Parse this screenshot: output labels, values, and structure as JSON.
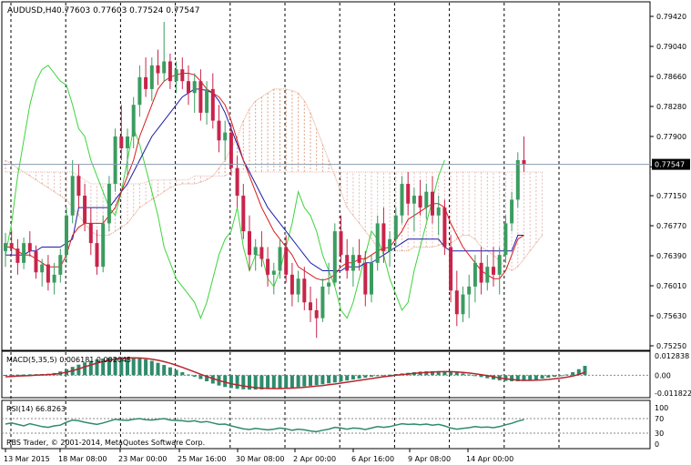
{
  "chart_data": {
    "type": "candlestick",
    "symbol_label": "AUDUSD,H4",
    "ohlc_label": "0.77603 0.77603 0.77524 0.77547",
    "current_price_label": "0.77547",
    "price_ticks": [
      "0.79420",
      "0.79040",
      "0.78660",
      "0.78280",
      "0.77900",
      "0.77515",
      "0.77150",
      "0.76770",
      "0.76390",
      "0.76010",
      "0.75630",
      "0.75250"
    ],
    "ylim": [
      0.7525,
      0.7942
    ],
    "current_price": 0.77547,
    "x_labels": [
      "13 Mar 2015",
      "18 Mar 08:00",
      "23 Mar 00:00",
      "25 Mar 16:00",
      "30 Mar 08:00",
      "2 Apr 00:00",
      "6 Apr 16:00",
      "9 Apr 08:00",
      "14 Apr 00:00"
    ],
    "session_separators": 11,
    "candles": [
      [
        0.7645,
        0.7668,
        0.7625,
        0.7655
      ],
      [
        0.7655,
        0.7672,
        0.764,
        0.7648
      ],
      [
        0.7648,
        0.766,
        0.7615,
        0.763
      ],
      [
        0.763,
        0.7662,
        0.7622,
        0.7655
      ],
      [
        0.7655,
        0.767,
        0.7638,
        0.7645
      ],
      [
        0.7645,
        0.7652,
        0.761,
        0.7618
      ],
      [
        0.7618,
        0.7635,
        0.76,
        0.7628
      ],
      [
        0.7628,
        0.764,
        0.7595,
        0.7605
      ],
      [
        0.7605,
        0.763,
        0.759,
        0.7615
      ],
      [
        0.7615,
        0.7648,
        0.7605,
        0.764
      ],
      [
        0.764,
        0.77,
        0.763,
        0.769
      ],
      [
        0.769,
        0.776,
        0.768,
        0.774
      ],
      [
        0.774,
        0.7755,
        0.77,
        0.7715
      ],
      [
        0.7715,
        0.773,
        0.767,
        0.768
      ],
      [
        0.768,
        0.77,
        0.764,
        0.7655
      ],
      [
        0.7655,
        0.7672,
        0.7615,
        0.7625
      ],
      [
        0.7625,
        0.769,
        0.7618,
        0.768
      ],
      [
        0.768,
        0.774,
        0.767,
        0.773
      ],
      [
        0.773,
        0.78,
        0.772,
        0.779
      ],
      [
        0.779,
        0.783,
        0.776,
        0.7775
      ],
      [
        0.7775,
        0.78,
        0.774,
        0.779
      ],
      [
        0.779,
        0.784,
        0.7775,
        0.783
      ],
      [
        0.783,
        0.788,
        0.7815,
        0.7865
      ],
      [
        0.7865,
        0.789,
        0.784,
        0.785
      ],
      [
        0.785,
        0.789,
        0.7835,
        0.788
      ],
      [
        0.788,
        0.79,
        0.7855,
        0.787
      ],
      [
        0.787,
        0.7935,
        0.786,
        0.7885
      ],
      [
        0.7885,
        0.7895,
        0.785,
        0.786
      ],
      [
        0.786,
        0.7885,
        0.7845,
        0.7875
      ],
      [
        0.7875,
        0.789,
        0.785,
        0.786
      ],
      [
        0.786,
        0.788,
        0.783,
        0.7845
      ],
      [
        0.7845,
        0.787,
        0.782,
        0.786
      ],
      [
        0.786,
        0.7875,
        0.781,
        0.782
      ],
      [
        0.782,
        0.786,
        0.7805,
        0.785
      ],
      [
        0.785,
        0.787,
        0.78,
        0.781
      ],
      [
        0.781,
        0.783,
        0.777,
        0.7785
      ],
      [
        0.7785,
        0.781,
        0.776,
        0.7795
      ],
      [
        0.7795,
        0.7805,
        0.774,
        0.775
      ],
      [
        0.775,
        0.7765,
        0.77,
        0.7715
      ],
      [
        0.7715,
        0.773,
        0.766,
        0.767
      ],
      [
        0.767,
        0.769,
        0.762,
        0.764
      ],
      [
        0.764,
        0.766,
        0.762,
        0.765
      ],
      [
        0.765,
        0.767,
        0.7625,
        0.7635
      ],
      [
        0.7635,
        0.765,
        0.76,
        0.7615
      ],
      [
        0.7615,
        0.763,
        0.759,
        0.762
      ],
      [
        0.762,
        0.766,
        0.761,
        0.765
      ],
      [
        0.765,
        0.7665,
        0.7605,
        0.7615
      ],
      [
        0.7615,
        0.763,
        0.7575,
        0.759
      ],
      [
        0.759,
        0.762,
        0.758,
        0.761
      ],
      [
        0.761,
        0.7625,
        0.757,
        0.758
      ],
      [
        0.758,
        0.76,
        0.7555,
        0.757
      ],
      [
        0.757,
        0.7585,
        0.7535,
        0.756
      ],
      [
        0.756,
        0.761,
        0.7555,
        0.76
      ],
      [
        0.76,
        0.763,
        0.759,
        0.7605
      ],
      [
        0.7605,
        0.768,
        0.76,
        0.767
      ],
      [
        0.767,
        0.769,
        0.763,
        0.764
      ],
      [
        0.764,
        0.766,
        0.761,
        0.762
      ],
      [
        0.762,
        0.765,
        0.76,
        0.764
      ],
      [
        0.764,
        0.766,
        0.762,
        0.763
      ],
      [
        0.763,
        0.7645,
        0.7575,
        0.759
      ],
      [
        0.759,
        0.764,
        0.758,
        0.763
      ],
      [
        0.763,
        0.769,
        0.762,
        0.768
      ],
      [
        0.768,
        0.77,
        0.763,
        0.7645
      ],
      [
        0.7645,
        0.767,
        0.7625,
        0.766
      ],
      [
        0.766,
        0.77,
        0.765,
        0.769
      ],
      [
        0.769,
        0.774,
        0.768,
        0.773
      ],
      [
        0.773,
        0.7745,
        0.769,
        0.7705
      ],
      [
        0.7705,
        0.7725,
        0.767,
        0.7715
      ],
      [
        0.7715,
        0.7735,
        0.769,
        0.77
      ],
      [
        0.77,
        0.773,
        0.7685,
        0.772
      ],
      [
        0.772,
        0.774,
        0.768,
        0.769
      ],
      [
        0.769,
        0.7715,
        0.7665,
        0.77
      ],
      [
        0.77,
        0.771,
        0.764,
        0.765
      ],
      [
        0.765,
        0.7665,
        0.758,
        0.7595
      ],
      [
        0.7595,
        0.762,
        0.755,
        0.7565
      ],
      [
        0.7565,
        0.76,
        0.7555,
        0.759
      ],
      [
        0.759,
        0.7615,
        0.756,
        0.76
      ],
      [
        0.76,
        0.764,
        0.758,
        0.763
      ],
      [
        0.763,
        0.765,
        0.759,
        0.7605
      ],
      [
        0.7605,
        0.764,
        0.7595,
        0.7625
      ],
      [
        0.7625,
        0.765,
        0.76,
        0.7615
      ],
      [
        0.7615,
        0.765,
        0.759,
        0.764
      ],
      [
        0.764,
        0.769,
        0.763,
        0.768
      ],
      [
        0.768,
        0.772,
        0.767,
        0.771
      ],
      [
        0.771,
        0.777,
        0.77,
        0.776
      ],
      [
        0.776,
        0.779,
        0.7745,
        0.7755
      ]
    ],
    "ichimoku": {
      "tenkan": [
        0.765,
        0.765,
        0.7645,
        0.764,
        0.764,
        0.7635,
        0.763,
        0.7625,
        0.7625,
        0.7625,
        0.764,
        0.7665,
        0.7675,
        0.768,
        0.768,
        0.768,
        0.768,
        0.769,
        0.77,
        0.772,
        0.774,
        0.776,
        0.779,
        0.781,
        0.783,
        0.785,
        0.786,
        0.7865,
        0.7868,
        0.787,
        0.787,
        0.7868,
        0.786,
        0.785,
        0.7845,
        0.784,
        0.783,
        0.781,
        0.7785,
        0.776,
        0.774,
        0.772,
        0.77,
        0.7685,
        0.767,
        0.766,
        0.765,
        0.764,
        0.7625,
        0.762,
        0.7615,
        0.761,
        0.7608,
        0.761,
        0.7615,
        0.7625,
        0.763,
        0.763,
        0.7635,
        0.7635,
        0.764,
        0.7645,
        0.7648,
        0.765,
        0.766,
        0.767,
        0.7685,
        0.769,
        0.7695,
        0.77,
        0.7705,
        0.7705,
        0.77,
        0.768,
        0.7665,
        0.765,
        0.764,
        0.763,
        0.762,
        0.7615,
        0.761,
        0.761,
        0.762,
        0.764,
        0.766,
        0.7665
      ],
      "kijun": [
        0.764,
        0.764,
        0.764,
        0.764,
        0.7645,
        0.7645,
        0.765,
        0.765,
        0.765,
        0.765,
        0.7655,
        0.766,
        0.77,
        0.77,
        0.77,
        0.77,
        0.77,
        0.77,
        0.771,
        0.772,
        0.773,
        0.7745,
        0.776,
        0.7775,
        0.779,
        0.78,
        0.781,
        0.782,
        0.783,
        0.784,
        0.7845,
        0.785,
        0.785,
        0.7848,
        0.7845,
        0.7835,
        0.782,
        0.78,
        0.778,
        0.776,
        0.7745,
        0.773,
        0.7715,
        0.77,
        0.769,
        0.768,
        0.767,
        0.766,
        0.765,
        0.764,
        0.763,
        0.7625,
        0.762,
        0.762,
        0.762,
        0.762,
        0.7625,
        0.7625,
        0.7625,
        0.763,
        0.763,
        0.7635,
        0.764,
        0.7645,
        0.765,
        0.7655,
        0.766,
        0.766,
        0.766,
        0.766,
        0.766,
        0.766,
        0.765,
        0.7645,
        0.7645,
        0.7645,
        0.7645,
        0.7645,
        0.7645,
        0.7645,
        0.7645,
        0.7645,
        0.7645,
        0.7645,
        0.7665,
        0.7665
      ],
      "chikou": [
        0.764,
        0.768,
        0.774,
        0.7785,
        0.783,
        0.786,
        0.7875,
        0.788,
        0.787,
        0.786,
        0.7855,
        0.783,
        0.78,
        0.779,
        0.776,
        0.774,
        0.772,
        0.77,
        0.769,
        0.772,
        0.776,
        0.78,
        0.778,
        0.775,
        0.772,
        0.769,
        0.765,
        0.763,
        0.761,
        0.76,
        0.759,
        0.758,
        0.756,
        0.758,
        0.761,
        0.764,
        0.766,
        0.767,
        0.77,
        0.765,
        0.762,
        0.764,
        0.764,
        0.761,
        0.76,
        0.762,
        0.765,
        0.768,
        0.772,
        0.77,
        0.769,
        0.767,
        0.764,
        0.762,
        0.76,
        0.757,
        0.756,
        0.758,
        0.761,
        0.764,
        0.767,
        0.766,
        0.764,
        0.761,
        0.759,
        0.757,
        0.758,
        0.762,
        0.765,
        0.768,
        0.771,
        0.774,
        0.776
      ],
      "span_a": [
        0.776,
        0.7755,
        0.775,
        0.7745,
        0.774,
        0.7735,
        0.773,
        0.7725,
        0.772,
        0.7715,
        0.771,
        0.77,
        0.769,
        0.768,
        0.767,
        0.7665,
        0.7665,
        0.7665,
        0.767,
        0.7675,
        0.768,
        0.769,
        0.77,
        0.7705,
        0.771,
        0.7715,
        0.772,
        0.7725,
        0.7728,
        0.773,
        0.773,
        0.773,
        0.7732,
        0.7735,
        0.774,
        0.775,
        0.776,
        0.7775,
        0.779,
        0.781,
        0.7825,
        0.7835,
        0.784,
        0.7845,
        0.785,
        0.785,
        0.785,
        0.7848,
        0.7845,
        0.7835,
        0.782,
        0.78,
        0.778,
        0.776,
        0.774,
        0.772,
        0.77,
        0.769,
        0.768,
        0.767,
        0.766,
        0.765,
        0.7645,
        0.7645,
        0.7645,
        0.7645,
        0.7645,
        0.765,
        0.765,
        0.765,
        0.765,
        0.7652,
        0.7655,
        0.7655,
        0.766,
        0.7665,
        0.7665,
        0.766,
        0.765,
        0.7645,
        0.764,
        0.7632,
        0.7625,
        0.762,
        0.7625,
        0.7635,
        0.7645,
        0.7655,
        0.7665
      ],
      "span_b": [
        0.7745,
        0.7745,
        0.7745,
        0.7745,
        0.7745,
        0.7745,
        0.7745,
        0.7745,
        0.7745,
        0.7745,
        0.7745,
        0.7745,
        0.774,
        0.7735,
        0.773,
        0.773,
        0.773,
        0.773,
        0.773,
        0.773,
        0.773,
        0.773,
        0.773,
        0.7732,
        0.7735,
        0.7735,
        0.7735,
        0.7735,
        0.7735,
        0.7735,
        0.7735,
        0.774,
        0.774,
        0.774,
        0.774,
        0.774,
        0.774,
        0.7745,
        0.7745,
        0.7745,
        0.7745,
        0.7745,
        0.7745,
        0.7745,
        0.7745,
        0.7745,
        0.7745,
        0.7745,
        0.7745,
        0.7745,
        0.7745,
        0.7745,
        0.7745,
        0.7745,
        0.7745,
        0.7745,
        0.7745,
        0.7745,
        0.7745,
        0.7745,
        0.7745,
        0.7745,
        0.7745,
        0.7745,
        0.7745,
        0.7745,
        0.7745,
        0.7745,
        0.7745,
        0.7745,
        0.7745,
        0.7745,
        0.7745,
        0.7745,
        0.7745,
        0.7745,
        0.7745,
        0.7745,
        0.7745,
        0.7745,
        0.7745,
        0.7745,
        0.7745,
        0.7745,
        0.7745,
        0.7745,
        0.7745,
        0.7745,
        0.7745
      ]
    },
    "macd": {
      "label": "MACD(5,35,5) 0.006181 0.002045",
      "ticks": [
        "0.012838",
        "0.00",
        "-0.011822"
      ],
      "ylim": [
        -0.011822,
        0.012838
      ],
      "histogram": [
        0.0002,
        0.0003,
        0.0004,
        0.0005,
        0.0006,
        0.0007,
        0.0008,
        0.001,
        0.0015,
        0.0025,
        0.004,
        0.0055,
        0.007,
        0.0085,
        0.0095,
        0.0105,
        0.011,
        0.0115,
        0.0118,
        0.012,
        0.0119,
        0.0117,
        0.0112,
        0.0105,
        0.0095,
        0.0082,
        0.0068,
        0.0052,
        0.0035,
        0.002,
        0.0005,
        -0.001,
        -0.0025,
        -0.004,
        -0.0055,
        -0.0068,
        -0.0078,
        -0.0085,
        -0.009,
        -0.0093,
        -0.0095,
        -0.0095,
        -0.0094,
        -0.0092,
        -0.009,
        -0.0088,
        -0.0085,
        -0.0082,
        -0.0078,
        -0.0074,
        -0.007,
        -0.0065,
        -0.006,
        -0.0054,
        -0.0048,
        -0.0042,
        -0.0035,
        -0.0028,
        -0.0022,
        -0.0016,
        -0.001,
        -0.0005,
        0.0,
        0.0004,
        0.0008,
        0.0012,
        0.0016,
        0.002,
        0.0024,
        0.0026,
        0.0027,
        0.0027,
        0.0025,
        0.0022,
        0.0018,
        0.0012,
        0.0005,
        -0.0003,
        -0.0012,
        -0.002,
        -0.0028,
        -0.0034,
        -0.0038,
        -0.004,
        -0.004,
        -0.0038,
        -0.0034,
        -0.0028,
        -0.0022,
        -0.0016,
        -0.001,
        -0.0004,
        0.0005,
        0.002,
        0.004,
        0.0062
      ],
      "signal": [
        -0.001,
        -0.0008,
        -0.0006,
        -0.0004,
        -0.0002,
        0.0,
        0.0002,
        0.0004,
        0.0007,
        0.0012,
        0.002,
        0.003,
        0.0042,
        0.0055,
        0.0068,
        0.008,
        0.009,
        0.0099,
        0.0106,
        0.0111,
        0.0114,
        0.0115,
        0.0114,
        0.0111,
        0.0106,
        0.0099,
        0.009,
        0.0079,
        0.0066,
        0.0052,
        0.0037,
        0.0022,
        0.0006,
        -0.0008,
        -0.0022,
        -0.0035,
        -0.0046,
        -0.0056,
        -0.0064,
        -0.0071,
        -0.0077,
        -0.0082,
        -0.0085,
        -0.0087,
        -0.0088,
        -0.0088,
        -0.0087,
        -0.0085,
        -0.0083,
        -0.008,
        -0.0076,
        -0.0072,
        -0.0068,
        -0.0063,
        -0.0058,
        -0.0052,
        -0.0046,
        -0.004,
        -0.0034,
        -0.0028,
        -0.0022,
        -0.0016,
        -0.001,
        -0.0005,
        0.0,
        0.0004,
        0.0008,
        0.0012,
        0.0016,
        0.0019,
        0.0021,
        0.0023,
        0.0024,
        0.0024,
        0.0022,
        0.0019,
        0.0015,
        0.001,
        0.0004,
        -0.0003,
        -0.001,
        -0.0017,
        -0.0023,
        -0.0028,
        -0.0032,
        -0.0034,
        -0.0034,
        -0.0033,
        -0.0031,
        -0.0028,
        -0.0024,
        -0.0019,
        -0.0013,
        -0.0006,
        0.0005,
        0.002
      ]
    },
    "rsi": {
      "label": "RSI(14) 66.8263",
      "ticks": [
        "100",
        "70",
        "30",
        "0"
      ],
      "ylim": [
        0,
        100
      ],
      "levels": [
        70,
        30
      ],
      "values": [
        55,
        58,
        54,
        50,
        56,
        52,
        48,
        46,
        50,
        52,
        60,
        66,
        64,
        60,
        57,
        54,
        58,
        63,
        68,
        66,
        65,
        68,
        70,
        67,
        66,
        68,
        70,
        66,
        65,
        64,
        62,
        64,
        60,
        62,
        58,
        54,
        55,
        50,
        46,
        42,
        40,
        43,
        41,
        39,
        41,
        44,
        42,
        38,
        41,
        39,
        36,
        34,
        38,
        41,
        46,
        44,
        41,
        44,
        43,
        40,
        44,
        48,
        46,
        48,
        52,
        56,
        54,
        55,
        53,
        55,
        52,
        54,
        50,
        44,
        41,
        43,
        45,
        48,
        46,
        47,
        45,
        48,
        53,
        57,
        63,
        67
      ]
    },
    "copyright": "RBS Trader, © 2001-2014, MetaQuotes Software Corp.",
    "colors": {
      "bull": "#3c9c60",
      "bear": "#c8244a",
      "tenkan": "#d81c1c",
      "kijun": "#1c1ca8",
      "chikou": "#3dd43d",
      "cloud_up": "#e0a080",
      "cloud_down": "#e6b8b8",
      "macd_hist": "#2e8b6b",
      "macd_signal": "#b8252e",
      "rsi": "#2e8b6b"
    }
  }
}
